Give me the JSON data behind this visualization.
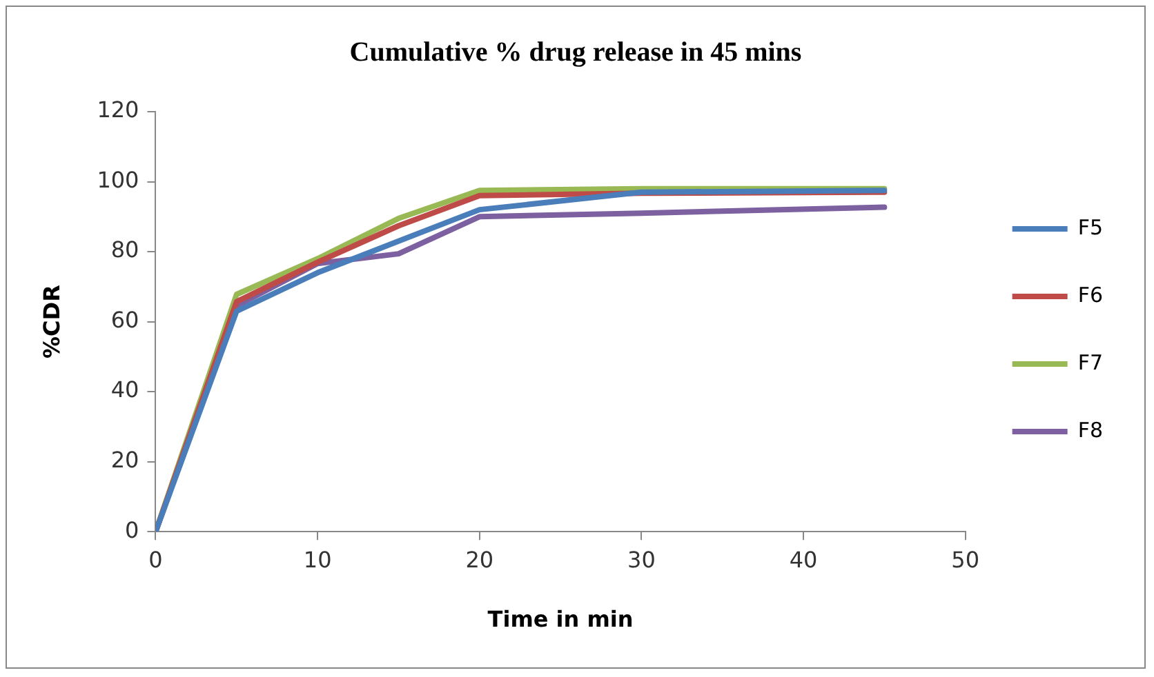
{
  "chart_data": {
    "type": "line",
    "title": "Cumulative % drug release in 45 mins",
    "xlabel": "Time in min",
    "ylabel": "%CDR",
    "x": [
      0,
      5,
      10,
      15,
      20,
      30,
      45
    ],
    "series": [
      {
        "name": "F5",
        "color": "#4a7ebb",
        "values": [
          0,
          63,
          74,
          83,
          92,
          97,
          97.5
        ]
      },
      {
        "name": "F6",
        "color": "#be4b48",
        "values": [
          0,
          65.7,
          77,
          87.4,
          96,
          96.7,
          97
        ]
      },
      {
        "name": "F7",
        "color": "#98b954",
        "values": [
          0,
          67.8,
          78,
          89.5,
          97.5,
          98,
          98
        ]
      },
      {
        "name": "F8",
        "color": "#7d60a0",
        "values": [
          0,
          64.5,
          76.6,
          79.4,
          90,
          91,
          92.7
        ]
      }
    ],
    "xlim": [
      0,
      50
    ],
    "xticks": [
      0,
      10,
      20,
      30,
      40,
      50
    ],
    "ylim": [
      0,
      120
    ],
    "yticks": [
      0,
      20,
      40,
      60,
      80,
      100,
      120
    ],
    "grid": false,
    "legend": "right",
    "marker": "none",
    "line_style": "solid"
  }
}
